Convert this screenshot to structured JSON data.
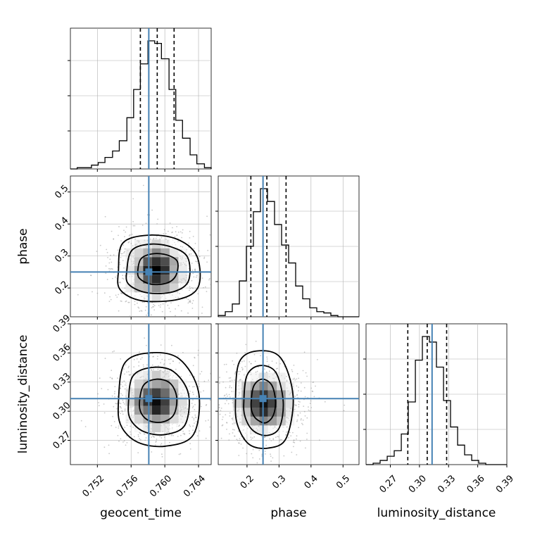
{
  "chart_data": {
    "type": "corner",
    "parameters": [
      "geocent_time",
      "phase",
      "luminosity_distance"
    ],
    "axis_labels": {
      "geocent_time": "geocent_time",
      "phase": "phase",
      "luminosity_distance": "luminosity_distance"
    },
    "ranges": {
      "geocent_time": [
        0.7488,
        0.7655
      ],
      "phase": [
        0.11,
        0.55
      ],
      "luminosity_distance": [
        0.245,
        0.39
      ]
    },
    "ticks": {
      "geocent_time": [
        "0.752",
        "0.756",
        "0.760",
        "0.764"
      ],
      "phase": [
        "0.2",
        "0.3",
        "0.4",
        "0.5"
      ],
      "luminosity_distance": [
        "0.27",
        "0.30",
        "0.33",
        "0.36",
        "0.39"
      ]
    },
    "truths": {
      "geocent_time": 0.7581,
      "phase": 0.25,
      "luminosity_distance": 0.313
    },
    "quantiles": {
      "geocent_time": [
        0.7571,
        0.7591,
        0.7611
      ],
      "phase": [
        0.212,
        0.262,
        0.322
      ],
      "luminosity_distance": [
        0.288,
        0.308,
        0.328
      ]
    },
    "histograms": {
      "geocent_time": {
        "edges": [
          0.7488,
          0.7496,
          0.7504,
          0.7513,
          0.7521,
          0.7529,
          0.7538,
          0.7546,
          0.7555,
          0.7563,
          0.7571,
          0.758,
          0.7588,
          0.7596,
          0.7605,
          0.7613,
          0.7621,
          0.763,
          0.7638,
          0.7647,
          0.7655
        ],
        "counts": [
          0,
          1,
          1,
          3,
          5,
          9,
          14,
          22,
          40,
          62,
          82,
          100,
          98,
          86,
          62,
          38,
          24,
          11,
          4,
          1
        ]
      },
      "phase": {
        "edges": [
          0.11,
          0.132,
          0.154,
          0.176,
          0.198,
          0.22,
          0.242,
          0.264,
          0.286,
          0.308,
          0.33,
          0.352,
          0.374,
          0.396,
          0.418,
          0.44,
          0.462,
          0.484,
          0.506,
          0.528,
          0.55
        ],
        "counts": [
          1,
          4,
          10,
          28,
          55,
          82,
          100,
          90,
          72,
          56,
          42,
          24,
          14,
          7,
          4,
          3,
          1,
          0,
          0,
          0
        ]
      },
      "luminosity_distance": {
        "edges": [
          0.245,
          0.2523,
          0.2595,
          0.2668,
          0.274,
          0.2813,
          0.2885,
          0.2958,
          0.303,
          0.3103,
          0.3175,
          0.3248,
          0.332,
          0.3393,
          0.3465,
          0.3538,
          0.361,
          0.3683,
          0.3755,
          0.3828,
          0.39
        ],
        "counts": [
          0,
          1,
          3,
          6,
          10,
          22,
          45,
          75,
          92,
          88,
          70,
          46,
          27,
          14,
          7,
          3,
          1,
          0,
          0,
          0
        ]
      }
    },
    "scatter_2d": [
      {
        "x": "geocent_time",
        "y": "phase",
        "center": [
          0.759,
          0.255
        ],
        "contour_levels": [
          [
            [
              0.7568,
              0.255
            ],
            [
              0.7572,
              0.292
            ],
            [
              0.7586,
              0.307
            ],
            [
              0.7603,
              0.303
            ],
            [
              0.7615,
              0.282
            ],
            [
              0.7613,
              0.238
            ],
            [
              0.7602,
              0.215
            ],
            [
              0.7583,
              0.212
            ],
            [
              0.757,
              0.23
            ]
          ],
          [
            [
              0.7555,
              0.255
            ],
            [
              0.7561,
              0.318
            ],
            [
              0.7583,
              0.337
            ],
            [
              0.7608,
              0.328
            ],
            [
              0.7627,
              0.296
            ],
            [
              0.7628,
              0.222
            ],
            [
              0.761,
              0.188
            ],
            [
              0.7579,
              0.185
            ],
            [
              0.7557,
              0.212
            ]
          ],
          [
            [
              0.7545,
              0.255
            ],
            [
              0.755,
              0.34
            ],
            [
              0.758,
              0.365
            ],
            [
              0.7615,
              0.352
            ],
            [
              0.7638,
              0.3
            ],
            [
              0.764,
              0.205
            ],
            [
              0.7617,
              0.165
            ],
            [
              0.7573,
              0.16
            ],
            [
              0.7547,
              0.195
            ]
          ]
        ]
      },
      {
        "x": "geocent_time",
        "y": "luminosity_distance",
        "center": [
          0.759,
          0.31
        ],
        "contour_levels": [
          [
            [
              0.757,
              0.31
            ],
            [
              0.7575,
              0.327
            ],
            [
              0.759,
              0.333
            ],
            [
              0.7606,
              0.329
            ],
            [
              0.7614,
              0.315
            ],
            [
              0.7611,
              0.297
            ],
            [
              0.7598,
              0.289
            ],
            [
              0.7582,
              0.29
            ],
            [
              0.7572,
              0.298
            ]
          ],
          [
            [
              0.7557,
              0.31
            ],
            [
              0.7562,
              0.336
            ],
            [
              0.7584,
              0.345
            ],
            [
              0.761,
              0.341
            ],
            [
              0.7628,
              0.318
            ],
            [
              0.7624,
              0.286
            ],
            [
              0.7601,
              0.276
            ],
            [
              0.7575,
              0.279
            ],
            [
              0.7559,
              0.292
            ]
          ],
          [
            [
              0.7545,
              0.31
            ],
            [
              0.7552,
              0.349
            ],
            [
              0.7581,
              0.36
            ],
            [
              0.7617,
              0.354
            ],
            [
              0.764,
              0.32
            ],
            [
              0.7634,
              0.276
            ],
            [
              0.7601,
              0.264
            ],
            [
              0.7568,
              0.268
            ],
            [
              0.7548,
              0.285
            ]
          ]
        ]
      },
      {
        "x": "phase",
        "y": "luminosity_distance",
        "center": [
          0.252,
          0.308
        ],
        "contour_levels": [
          [
            [
              0.213,
              0.31
            ],
            [
              0.221,
              0.326
            ],
            [
              0.247,
              0.333
            ],
            [
              0.277,
              0.327
            ],
            [
              0.289,
              0.31
            ],
            [
              0.281,
              0.295
            ],
            [
              0.257,
              0.288
            ],
            [
              0.229,
              0.292
            ],
            [
              0.215,
              0.3
            ]
          ],
          [
            [
              0.19,
              0.31
            ],
            [
              0.2,
              0.337
            ],
            [
              0.24,
              0.347
            ],
            [
              0.29,
              0.34
            ],
            [
              0.313,
              0.31
            ],
            [
              0.301,
              0.283
            ],
            [
              0.262,
              0.275
            ],
            [
              0.219,
              0.28
            ],
            [
              0.194,
              0.294
            ]
          ],
          [
            [
              0.164,
              0.31
            ],
            [
              0.175,
              0.35
            ],
            [
              0.23,
              0.362
            ],
            [
              0.305,
              0.355
            ],
            [
              0.344,
              0.315
            ],
            [
              0.322,
              0.272
            ],
            [
              0.265,
              0.262
            ],
            [
              0.206,
              0.266
            ],
            [
              0.17,
              0.286
            ]
          ]
        ]
      }
    ],
    "grid": true,
    "truth_color": "#4682b4",
    "line_color": "#000000",
    "grid_color": "#b0b0b0"
  }
}
